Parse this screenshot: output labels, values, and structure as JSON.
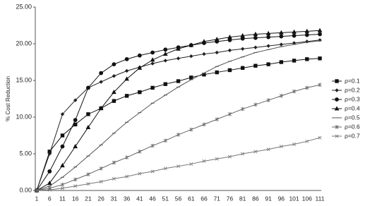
{
  "chart_data": {
    "type": "line",
    "y_label": "% Cost Reduction",
    "categories": [
      1,
      6,
      11,
      16,
      21,
      26,
      31,
      36,
      41,
      46,
      51,
      56,
      61,
      66,
      71,
      76,
      81,
      86,
      91,
      96,
      101,
      106,
      111
    ],
    "ylim": [
      0,
      25
    ],
    "yticks": [
      {
        "value": 0,
        "label": "0.00"
      },
      {
        "value": 5,
        "label": "5.00"
      },
      {
        "value": 10,
        "label": "10.00"
      },
      {
        "value": 15,
        "label": "15.00"
      },
      {
        "value": 20,
        "label": "20.00"
      },
      {
        "value": 25,
        "label": "25.00"
      }
    ],
    "grid": false,
    "legend": "right",
    "series": [
      {
        "name": "ρ=0.1",
        "color": "#111111",
        "marker": "square",
        "values": [
          0,
          5.3,
          7.5,
          9.0,
          10.4,
          11.2,
          12.2,
          12.9,
          13.4,
          14.0,
          14.5,
          14.9,
          15.4,
          15.8,
          16.1,
          16.4,
          16.7,
          17.0,
          17.2,
          17.5,
          17.7,
          17.9,
          18.0
        ]
      },
      {
        "name": "ρ=0.2",
        "color": "#222222",
        "marker": "diamond",
        "values": [
          0,
          5.0,
          10.4,
          12.3,
          14.0,
          14.8,
          15.6,
          16.3,
          16.8,
          17.3,
          17.7,
          18.0,
          18.3,
          18.6,
          18.8,
          19.1,
          19.3,
          19.5,
          19.7,
          19.9,
          20.1,
          20.3,
          20.5
        ]
      },
      {
        "name": "ρ=0.3",
        "color": "#111111",
        "marker": "circle",
        "values": [
          0,
          2.6,
          6.0,
          9.6,
          14.0,
          16.0,
          17.2,
          17.9,
          18.4,
          18.8,
          19.2,
          19.5,
          19.8,
          20.1,
          20.3,
          20.5,
          20.7,
          20.8,
          20.9,
          21.0,
          21.1,
          21.2,
          21.3
        ]
      },
      {
        "name": "ρ=0.4",
        "color": "#111111",
        "marker": "triangle",
        "values": [
          0,
          1.0,
          3.4,
          6.0,
          8.6,
          11.2,
          13.4,
          15.2,
          16.7,
          17.8,
          18.6,
          19.3,
          19.8,
          20.3,
          20.6,
          20.9,
          21.1,
          21.3,
          21.4,
          21.5,
          21.6,
          21.7,
          21.8
        ]
      },
      {
        "name": "ρ=0.5",
        "color": "#555555",
        "marker": "dash",
        "values": [
          0,
          0.6,
          1.8,
          3.2,
          4.7,
          6.2,
          7.8,
          9.3,
          10.6,
          11.9,
          13.0,
          14.1,
          15.1,
          16.0,
          16.9,
          17.6,
          18.2,
          18.8,
          19.2,
          19.6,
          19.9,
          20.2,
          20.4
        ]
      },
      {
        "name": "ρ=0.6",
        "color": "#666666",
        "marker": "star",
        "values": [
          0,
          0.3,
          0.8,
          1.5,
          2.2,
          3.0,
          3.8,
          4.5,
          5.3,
          6.1,
          6.8,
          7.6,
          8.3,
          9.0,
          9.7,
          10.4,
          11.1,
          11.7,
          12.3,
          12.9,
          13.5,
          14.0,
          14.4
        ]
      },
      {
        "name": "ρ=0.7",
        "color": "#777777",
        "marker": "x",
        "values": [
          0,
          0.1,
          0.3,
          0.6,
          0.9,
          1.2,
          1.6,
          1.9,
          2.3,
          2.6,
          3.0,
          3.3,
          3.6,
          4.0,
          4.3,
          4.6,
          5.0,
          5.3,
          5.6,
          6.0,
          6.3,
          6.7,
          7.2
        ]
      }
    ]
  }
}
